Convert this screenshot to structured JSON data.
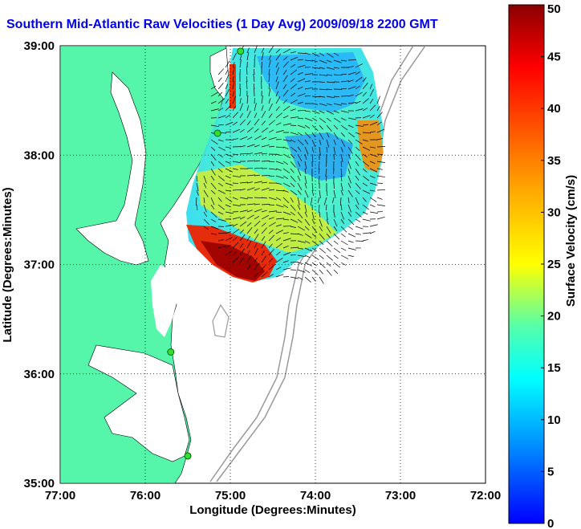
{
  "title": "Southern Mid-Atlantic Raw Velocities (1 Day Avg) 2009/09/18 2200 GMT",
  "map": {
    "xlabel": "Longitude (Degrees:Minutes)",
    "ylabel": "Latitude (Degrees:Minutes)",
    "x_ticks": [
      "77:00",
      "76:00",
      "75:00",
      "74:00",
      "73:00",
      "72:00"
    ],
    "y_ticks": [
      "39:00",
      "38:00",
      "37:00",
      "36:00",
      "35:00"
    ],
    "lon_range": [
      -77,
      -72
    ],
    "lat_range": [
      35,
      39
    ],
    "grid": true,
    "land_color": "#55f5aa",
    "stations": [
      {
        "lon": -74.88,
        "lat": 38.95
      },
      {
        "lon": -75.15,
        "lat": 38.2
      },
      {
        "lon": -75.7,
        "lat": 36.2
      },
      {
        "lon": -75.5,
        "lat": 35.25
      }
    ]
  },
  "colorbar": {
    "label": "Surface Velocity (cm/s)",
    "ticks": [
      "0",
      "5",
      "10",
      "15",
      "20",
      "25",
      "30",
      "35",
      "40",
      "45",
      "50"
    ],
    "min": 0,
    "max": 50,
    "colormap": [
      "#0000ff",
      "#00aaff",
      "#00ffff",
      "#55ffaa",
      "#aaff55",
      "#ffff00",
      "#ffaa00",
      "#ff5500",
      "#ff0000",
      "#aa0000"
    ]
  }
}
